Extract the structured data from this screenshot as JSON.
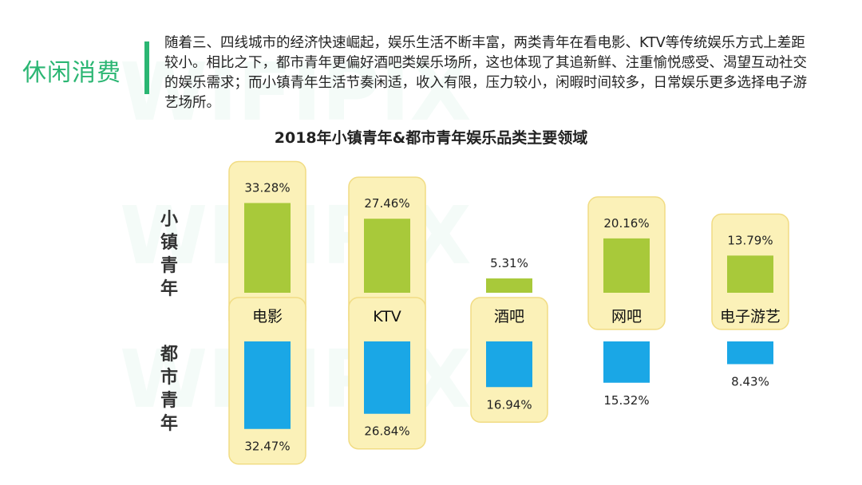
{
  "section_title": "休闲消费",
  "intro_text": "随着三、四线城市的经济快速崛起，娱乐生活不断丰富，两类青年在看电影、KTV等传统娱乐方式上差距较小。相比之下，都市青年更偏好酒吧类娱乐场所，这也体现了其追新鲜、注重愉悦感受、渴望互动社交的娱乐需求；而小镇青年生活节奏闲适，收入有限，压力较小，闲暇时间较多，日常娱乐更多选择电子游艺场所。",
  "colors": {
    "accent": "#2bb673",
    "town_bar": "#a8c93a",
    "city_bar": "#1aa7e6",
    "highlight": "#fbf1b8",
    "highlight_border": "#f1dc84"
  },
  "chart_data": {
    "type": "bar",
    "title": "2018年小镇青年&都市青年娱乐品类主要领域",
    "categories": [
      "电影",
      "KTV",
      "酒吧",
      "网吧",
      "电子游艺"
    ],
    "series": [
      {
        "name": "小镇青年",
        "values": [
          33.28,
          27.46,
          5.31,
          20.16,
          13.79
        ],
        "labels": [
          "33.28%",
          "27.46%",
          "5.31%",
          "20.16%",
          "13.79%"
        ]
      },
      {
        "name": "都市青年",
        "values": [
          32.47,
          26.84,
          16.94,
          15.32,
          8.43
        ],
        "labels": [
          "32.47%",
          "26.84%",
          "16.94%",
          "15.32%",
          "8.43%"
        ]
      }
    ],
    "highlighted": {
      "小镇青年": [
        "电影",
        "KTV",
        "网吧",
        "电子游艺"
      ],
      "都市青年": [
        "电影",
        "KTV",
        "酒吧"
      ]
    },
    "unit": "%"
  }
}
